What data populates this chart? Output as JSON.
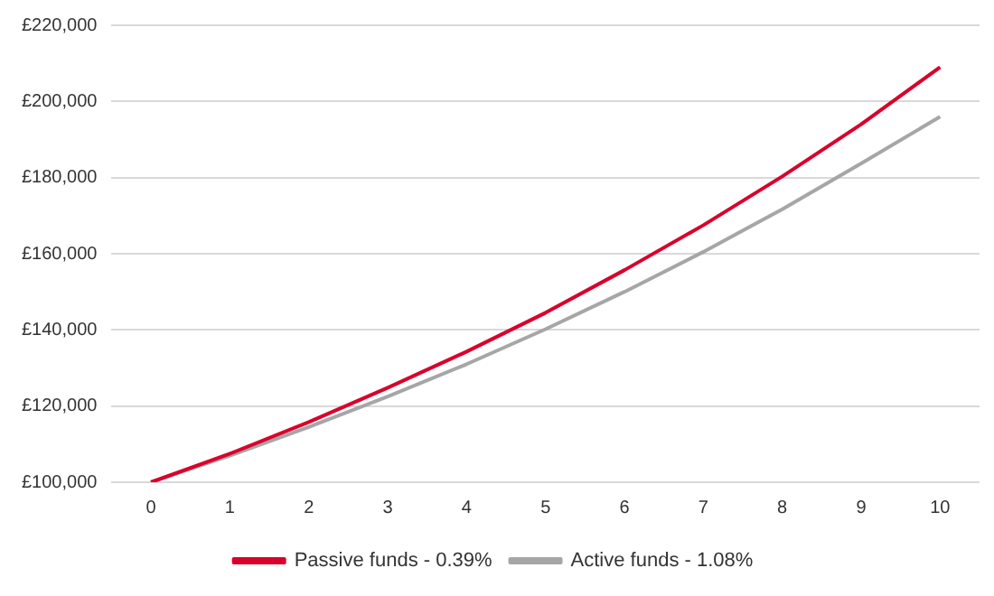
{
  "chart_data": {
    "type": "line",
    "categories": [
      "0",
      "1",
      "2",
      "3",
      "4",
      "5",
      "6",
      "7",
      "8",
      "9",
      "10"
    ],
    "series": [
      {
        "name": "Passive funds - 0.39%",
        "color": "#d9002c",
        "values": [
          100000,
          107500,
          115800,
          124800,
          134300,
          144500,
          155700,
          167500,
          180300,
          194000,
          209000
        ]
      },
      {
        "name": "Active funds - 1.08%",
        "color": "#a6a6a6",
        "values": [
          100000,
          107000,
          114500,
          122500,
          131000,
          140200,
          150000,
          160500,
          171700,
          183700,
          196000
        ]
      }
    ],
    "ylim": [
      100000,
      220000
    ],
    "yticks": [
      {
        "value": 100000,
        "label": "£100,000"
      },
      {
        "value": 120000,
        "label": "£120,000"
      },
      {
        "value": 140000,
        "label": "£140,000"
      },
      {
        "value": 160000,
        "label": "£160,000"
      },
      {
        "value": 180000,
        "label": "£180,000"
      },
      {
        "value": 200000,
        "label": "£200,000"
      },
      {
        "value": 220000,
        "label": "£220,000"
      }
    ],
    "grid": "y",
    "legend": "bottom",
    "marker": "none",
    "line_style": "solid"
  }
}
